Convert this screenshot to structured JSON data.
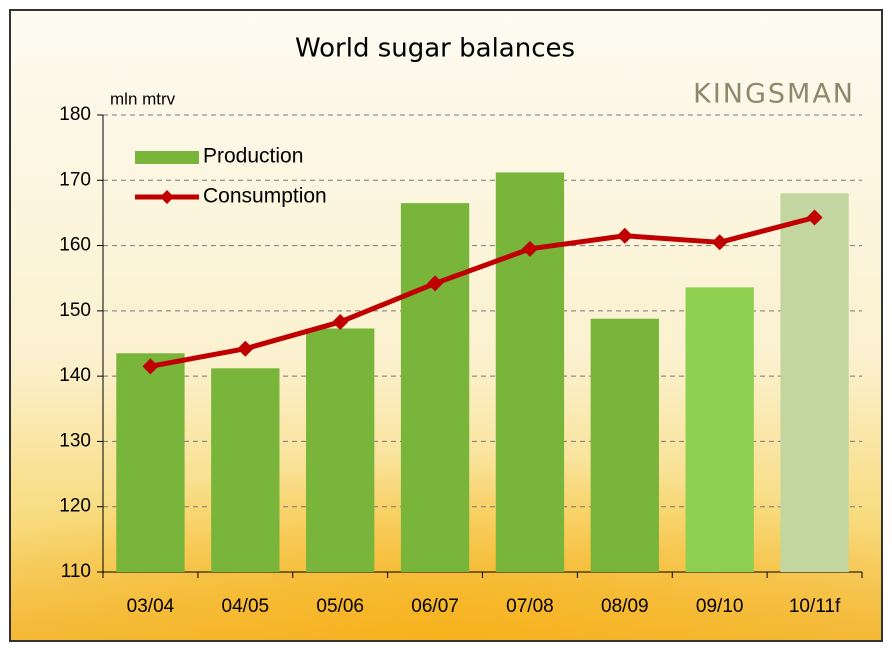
{
  "chart_data": {
    "type": "bar+line",
    "title": "World sugar balances",
    "brand": "KINGSMAN",
    "y_axis_label": "mln mtrv",
    "categories": [
      "03/04",
      "04/05",
      "05/06",
      "06/07",
      "07/08",
      "08/09",
      "09/10",
      "10/11f"
    ],
    "series": [
      {
        "name": "Production",
        "type": "bar",
        "color": "#78b53a",
        "colors": [
          "#78b53a",
          "#78b53a",
          "#78b53a",
          "#78b53a",
          "#78b53a",
          "#78b53a",
          "#8fcf50",
          "#c3d6a0"
        ],
        "values": [
          143.5,
          141.2,
          147.3,
          166.5,
          171.2,
          148.8,
          153.6,
          168.0
        ]
      },
      {
        "name": "Consumption",
        "type": "line",
        "color": "#c00000",
        "values": [
          141.5,
          144.2,
          148.3,
          154.2,
          159.5,
          161.5,
          160.5,
          164.3
        ]
      }
    ],
    "ylim": [
      110,
      180
    ],
    "yticks": [
      110,
      120,
      130,
      140,
      150,
      160,
      170,
      180
    ],
    "grid": true,
    "legend": "top-left"
  }
}
